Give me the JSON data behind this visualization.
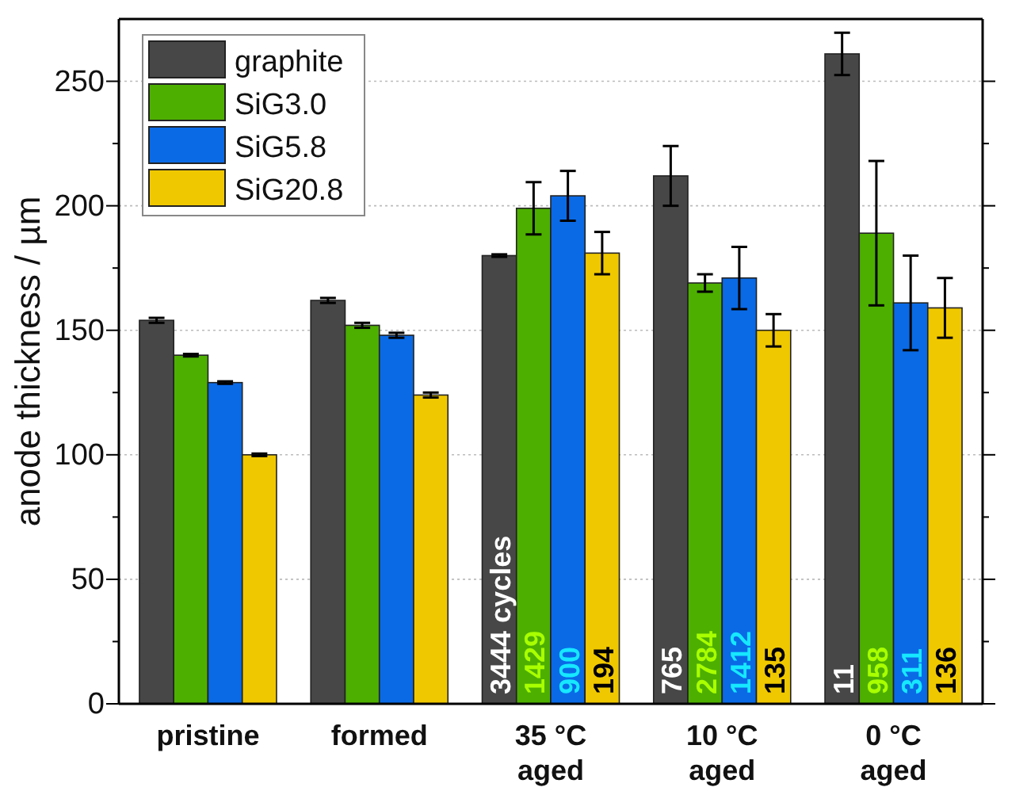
{
  "chart_data": {
    "type": "bar",
    "ylabel": "anode thickness / µm",
    "categories": [
      "pristine",
      "formed",
      "35 °C\naged",
      "10 °C\naged",
      "0 °C\naged"
    ],
    "series": [
      {
        "name": "graphite",
        "color": "#474747",
        "values": [
          154,
          162,
          180,
          212,
          261
        ],
        "errors": [
          1,
          1,
          0.5,
          12,
          8.5
        ]
      },
      {
        "name": "SiG3.0",
        "color": "#4daf00",
        "values": [
          140,
          152,
          199,
          169,
          189
        ],
        "errors": [
          0.5,
          1,
          10.5,
          3.5,
          29
        ]
      },
      {
        "name": "SiG5.8",
        "color": "#0a6ae6",
        "values": [
          129,
          148,
          204,
          171,
          161
        ],
        "errors": [
          0.5,
          1,
          10,
          12.5,
          19
        ]
      },
      {
        "name": "SiG20.8",
        "color": "#f0c800",
        "values": [
          100,
          124,
          181,
          150,
          159
        ],
        "errors": [
          0.5,
          1,
          8.5,
          6.5,
          12
        ]
      }
    ],
    "ylim": [
      0,
      275
    ],
    "yticks": [
      0,
      {
        "value": 25,
        "label": null
      },
      50,
      {
        "value": 75,
        "label": null
      },
      100,
      {
        "value": 125,
        "label": null
      },
      150,
      {
        "value": 175,
        "label": null
      },
      200,
      {
        "value": 225,
        "label": null
      },
      250
    ],
    "grid": "y",
    "legend": "top left",
    "annotations": [
      {
        "text": "3444 cycles",
        "x": "35 °C\naged",
        "y": 0
      },
      {
        "text": "1429",
        "x": "35 °C\naged",
        "y": 0
      },
      {
        "text": "900",
        "x": "35 °C\naged",
        "y": 0
      },
      {
        "text": "194",
        "x": "35 °C\naged",
        "y": 0
      },
      {
        "text": "765",
        "x": "10 °C\naged",
        "y": 0
      },
      {
        "text": "2784",
        "x": "10 °C\naged",
        "y": 0
      },
      {
        "text": "1412",
        "x": "10 °C\naged",
        "y": 0
      },
      {
        "text": "135",
        "x": "10 °C\naged",
        "y": 0
      },
      {
        "text": "11",
        "x": "0 °C\naged",
        "y": 0
      },
      {
        "text": "958",
        "x": "0 °C\naged",
        "y": 0
      },
      {
        "text": "311",
        "x": "0 °C\naged",
        "y": 0
      },
      {
        "text": "136",
        "x": "0 °C\naged",
        "y": 0
      }
    ]
  }
}
